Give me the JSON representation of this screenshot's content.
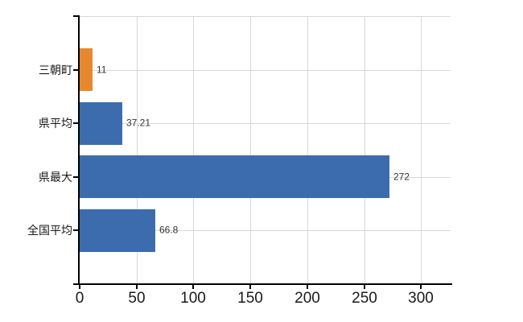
{
  "chart_data": {
    "type": "bar",
    "orientation": "horizontal",
    "title": "",
    "categories": [
      "三朝町",
      "県平均",
      "県最大",
      "全国平均"
    ],
    "values": [
      11,
      37.21,
      272,
      66.8
    ],
    "value_labels": [
      "11",
      "37.21",
      "272",
      "66.8"
    ],
    "bar_colors": [
      "#e8882e",
      "#3c6cae",
      "#3c6cae",
      "#3c6cae"
    ],
    "x_ticks": [
      0,
      50,
      100,
      150,
      200,
      250,
      300
    ],
    "x_tick_labels": [
      "0",
      "50",
      "100",
      "150",
      "200",
      "250",
      "300"
    ],
    "xlim": [
      0,
      326
    ],
    "grid": "both",
    "legend": "none",
    "colors": {
      "grid": "#d8d8d8",
      "axis": "#000000",
      "tick_text": "#1a1a1a",
      "value_text": "#333333",
      "background": "#ffffff",
      "accent_orange": "#e8882e",
      "accent_blue": "#3c6cae"
    }
  }
}
